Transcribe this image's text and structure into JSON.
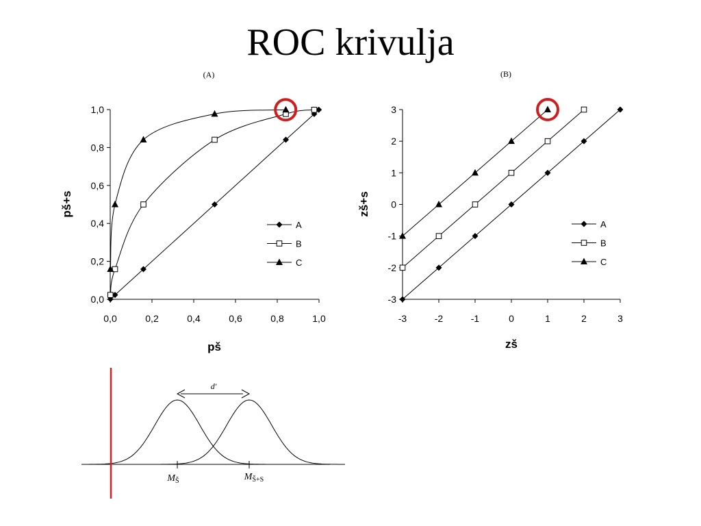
{
  "slide": {
    "title": "ROC krivulja"
  },
  "chart_data": [
    {
      "id": "A",
      "panel_label": "(A)",
      "type": "line",
      "xlabel": "pš",
      "ylabel": "pš+s",
      "xlim": [
        0,
        1
      ],
      "ylim": [
        0,
        1
      ],
      "xticks": [
        "0,0",
        "0,2",
        "0,4",
        "0,6",
        "0,8",
        "1,0"
      ],
      "yticks": [
        "0,0",
        "0,2",
        "0,4",
        "0,6",
        "0,8",
        "1,0"
      ],
      "legend_position": "right",
      "grid": false,
      "highlight": {
        "series": "C",
        "point": [
          0.84,
          0.999
        ],
        "color": "#cc1f1f"
      },
      "series": [
        {
          "name": "A",
          "marker": "diamond",
          "x": [
            0.001,
            0.023,
            0.159,
            0.5,
            0.841,
            0.977,
            0.999
          ],
          "y": [
            0.001,
            0.023,
            0.159,
            0.5,
            0.841,
            0.977,
            0.999
          ]
        },
        {
          "name": "B",
          "marker": "square",
          "x": [
            0.001,
            0.023,
            0.159,
            0.5,
            0.841,
            0.977
          ],
          "y": [
            0.023,
            0.159,
            0.5,
            0.841,
            0.977,
            0.999
          ]
        },
        {
          "name": "C",
          "marker": "triangle",
          "x": [
            0.001,
            0.023,
            0.159,
            0.5,
            0.841
          ],
          "y": [
            0.159,
            0.5,
            0.841,
            0.977,
            0.999
          ]
        }
      ]
    },
    {
      "id": "B",
      "panel_label": "(B)",
      "type": "line",
      "xlabel": "zš",
      "ylabel": "zš+s",
      "xlim": [
        -3,
        3
      ],
      "ylim": [
        -3,
        3
      ],
      "xticks": [
        "-3",
        "-2",
        "-1",
        "0",
        "1",
        "2",
        "3"
      ],
      "yticks": [
        "-3",
        "-2",
        "-1",
        "0",
        "1",
        "2",
        "3"
      ],
      "legend_position": "right",
      "grid": false,
      "highlight": {
        "series": "C",
        "point": [
          1,
          3
        ],
        "color": "#cc1f1f"
      },
      "series": [
        {
          "name": "A",
          "marker": "diamond",
          "x": [
            -3,
            -2,
            -1,
            0,
            1,
            2,
            3
          ],
          "y": [
            -3,
            -2,
            -1,
            0,
            1,
            2,
            3
          ]
        },
        {
          "name": "B",
          "marker": "square",
          "x": [
            -3,
            -2,
            -1,
            0,
            1,
            2
          ],
          "y": [
            -2,
            -1,
            0,
            1,
            2,
            3
          ]
        },
        {
          "name": "C",
          "marker": "triangle",
          "x": [
            -3,
            -2,
            -1,
            0,
            1
          ],
          "y": [
            -1,
            0,
            1,
            2,
            3
          ]
        }
      ]
    }
  ],
  "distribution": {
    "d_label": "d′",
    "m1_label": "M",
    "m1_sub": "Š",
    "m2_label": "M",
    "m2_sub": "Š+S",
    "criterion_color": "#dd1f1f",
    "curves": [
      {
        "name": "Š",
        "mean": 0
      },
      {
        "name": "Š+S",
        "mean": 1
      }
    ]
  }
}
